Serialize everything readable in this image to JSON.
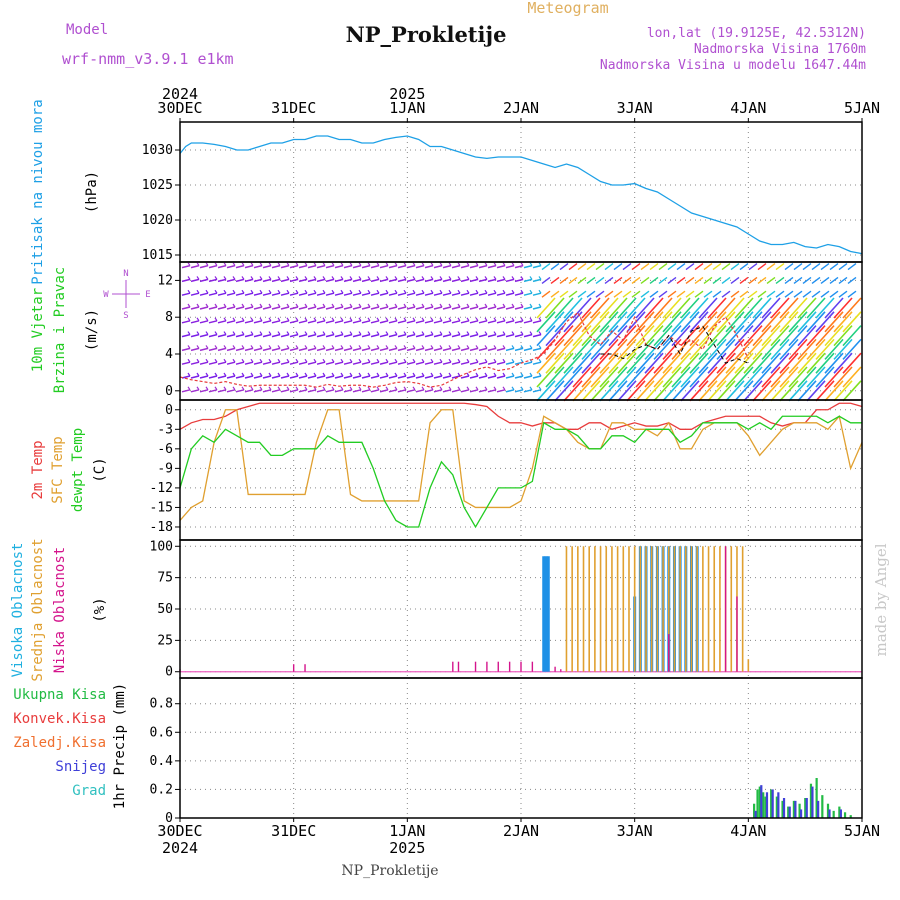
{
  "header": {
    "model_label": "Model",
    "model_name": "wrf-nmm_v3.9.1 e1km",
    "title": "NP_Prokletije",
    "subtitle": "Meteogram",
    "lonlat": "lon,lat (19.9125E, 42.5312N)",
    "elevation": "Nadmorska Visina 1760m",
    "model_elevation": "Nadmorska Visina u modelu 1647.44m",
    "watermark": "made by Angel",
    "footer_station": "NP_Prokletije"
  },
  "time_axis": {
    "labels": [
      "30DEC",
      "31DEC",
      "1JAN",
      "2JAN",
      "3JAN",
      "4JAN",
      "5JAN"
    ],
    "year_labels": [
      {
        "at": 0,
        "text": "2024"
      },
      {
        "at": 2,
        "text": "2025"
      }
    ]
  },
  "colors": {
    "pressure": "#1ea0e6",
    "temp2m": "#e83c3c",
    "sfc_temp": "#e0a030",
    "dewpoint": "#22cc22",
    "cloud_high": "#1e90e6",
    "cloud_mid": "#e0a030",
    "cloud_low": "#d4148c",
    "precip_total": "#22bb44",
    "precip_conv": "#e83c3c",
    "precip_frz": "#f07030",
    "precip_snow": "#4040d8",
    "precip_hail": "#30c0c0",
    "label_purple": "#b050d0",
    "grid": "#888888"
  },
  "chart_data": [
    {
      "type": "line",
      "panel": "pressure",
      "ylabel_name": "Pritisak na nivou mora",
      "ylabel_unit": "(hPa)",
      "yticks": [
        "1015",
        "1020",
        "1025",
        "1030"
      ],
      "ylim": [
        1014,
        1034
      ],
      "x_days": [
        0,
        0.05,
        0.1,
        0.2,
        0.3,
        0.4,
        0.5,
        0.6,
        0.7,
        0.8,
        0.9,
        1.0,
        1.1,
        1.2,
        1.3,
        1.4,
        1.5,
        1.6,
        1.7,
        1.8,
        1.9,
        2.0,
        2.1,
        2.2,
        2.3,
        2.4,
        2.5,
        2.6,
        2.7,
        2.8,
        2.9,
        3.0,
        3.1,
        3.2,
        3.3,
        3.4,
        3.5,
        3.6,
        3.7,
        3.8,
        3.9,
        4.0,
        4.1,
        4.2,
        4.3,
        4.4,
        4.5,
        4.6,
        4.7,
        4.8,
        4.9,
        5.0,
        5.1,
        5.2,
        5.3,
        5.4,
        5.5,
        5.6,
        5.7,
        5.8,
        5.9,
        6.0
      ],
      "series": [
        {
          "name": "SLP",
          "values": [
            1029.5,
            1030.5,
            1031.0,
            1031.0,
            1030.8,
            1030.5,
            1030.0,
            1030.0,
            1030.5,
            1031.0,
            1031.0,
            1031.5,
            1031.5,
            1032.0,
            1032.0,
            1031.5,
            1031.5,
            1031.0,
            1031.0,
            1031.5,
            1031.8,
            1032.0,
            1031.5,
            1030.5,
            1030.5,
            1030.0,
            1029.5,
            1029.0,
            1028.8,
            1029.0,
            1029.0,
            1029.0,
            1028.5,
            1028.0,
            1027.5,
            1028.0,
            1027.5,
            1026.5,
            1025.5,
            1025.0,
            1025.0,
            1025.2,
            1024.5,
            1024.0,
            1023.0,
            1022.0,
            1021.0,
            1020.5,
            1020.0,
            1019.5,
            1019.0,
            1018.0,
            1017.0,
            1016.5,
            1016.5,
            1016.8,
            1016.2,
            1016.0,
            1016.5,
            1016.2,
            1015.5,
            1015.2
          ]
        }
      ]
    },
    {
      "type": "line",
      "panel": "wind",
      "ylabel_name": "10m Vjetar",
      "ylabel_name2": "Brzina i Pravac",
      "ylabel_unit": "(m/s)",
      "compass": {
        "n": "N",
        "e": "E",
        "w": "W",
        "s": "S"
      },
      "yticks": [
        "0",
        "4",
        "8",
        "12"
      ],
      "ylim": [
        -1,
        14
      ],
      "x_days": [
        0,
        0.1,
        0.2,
        0.3,
        0.4,
        0.5,
        0.6,
        0.7,
        0.8,
        0.9,
        1.0,
        1.1,
        1.2,
        1.3,
        1.4,
        1.5,
        1.6,
        1.7,
        1.8,
        1.9,
        2.0,
        2.1,
        2.2,
        2.3,
        2.4,
        2.5,
        2.6,
        2.7,
        2.8,
        2.9,
        3.0,
        3.1,
        3.2,
        3.3,
        3.4,
        3.5,
        3.6,
        3.7,
        3.8,
        3.9,
        4.0,
        4.1,
        4.2,
        4.3,
        4.4,
        4.5,
        4.6,
        4.7,
        4.8,
        4.9,
        5.0
      ],
      "series": [
        {
          "name": "speed",
          "values": [
            1.5,
            1.2,
            1.0,
            0.8,
            1.0,
            0.7,
            0.5,
            0.6,
            0.6,
            0.6,
            0.6,
            0.6,
            0.4,
            0.7,
            0.5,
            0.6,
            0.6,
            0.4,
            0.6,
            0.9,
            1.0,
            0.8,
            0.4,
            0.6,
            1.2,
            1.8,
            2.3,
            2.6,
            2.2,
            2.4,
            3.0,
            3.4,
            4.0,
            5.5,
            7.5,
            8.5,
            6.0,
            5.0,
            6.5,
            5.5,
            8.0,
            5.0,
            4.5,
            6.0,
            5.0,
            5.5,
            4.5,
            7.0,
            8.0,
            6.0,
            3.5
          ]
        },
        {
          "name": "gust",
          "values": [
            null,
            null,
            null,
            null,
            null,
            null,
            null,
            null,
            null,
            null,
            null,
            null,
            null,
            null,
            null,
            null,
            null,
            null,
            null,
            null,
            null,
            null,
            null,
            null,
            null,
            null,
            null,
            null,
            null,
            null,
            null,
            null,
            null,
            null,
            null,
            null,
            null,
            4.0,
            4.0,
            3.5,
            4.5,
            5.0,
            4.5,
            6.0,
            4.0,
            6.5,
            7.0,
            5.0,
            3.0,
            3.5,
            3.0
          ]
        }
      ]
    },
    {
      "type": "line",
      "panel": "temperature",
      "ylabel_name": "2m Temp",
      "ylabel_name2": "SFC Temp",
      "ylabel_name3": "dewpt Temp",
      "ylabel_unit": "(C)",
      "yticks": [
        "0",
        "-3",
        "-6",
        "-9",
        "-12",
        "-15",
        "-18"
      ],
      "ylim": [
        -20,
        1.5
      ],
      "x_days": [
        0,
        0.1,
        0.2,
        0.3,
        0.4,
        0.5,
        0.6,
        0.7,
        0.8,
        0.9,
        1.0,
        1.1,
        1.2,
        1.3,
        1.4,
        1.5,
        1.6,
        1.7,
        1.8,
        1.9,
        2.0,
        2.1,
        2.2,
        2.3,
        2.4,
        2.5,
        2.6,
        2.7,
        2.8,
        2.9,
        3.0,
        3.1,
        3.2,
        3.3,
        3.4,
        3.5,
        3.6,
        3.7,
        3.8,
        3.9,
        4.0,
        4.1,
        4.2,
        4.3,
        4.4,
        4.5,
        4.6,
        4.7,
        4.8,
        4.9,
        5.0,
        5.1,
        5.2,
        5.3,
        5.4,
        5.5,
        5.6,
        5.7,
        5.8,
        5.9,
        6.0
      ],
      "series": [
        {
          "name": "2m",
          "values": [
            -3,
            -2,
            -1.5,
            -1.5,
            -1,
            0,
            0.5,
            1,
            1,
            1,
            1,
            1,
            1,
            1,
            1,
            1,
            1,
            1,
            1,
            1,
            1,
            1,
            1,
            1,
            1,
            1,
            0.8,
            0.5,
            -1,
            -2,
            -2,
            -2.5,
            -2,
            -2,
            -3,
            -3,
            -2,
            -2,
            -3,
            -2.5,
            -2,
            -2.5,
            -2.5,
            -2,
            -3,
            -3,
            -2,
            -1.5,
            -1,
            -1,
            -1,
            -1,
            -2,
            -2.5,
            -2,
            -2,
            0,
            0,
            1,
            1,
            0.5
          ]
        },
        {
          "name": "sfc",
          "values": [
            -17,
            -15,
            -14,
            -5,
            0,
            0,
            -13,
            -13,
            -13,
            -13,
            -13,
            -13,
            -5,
            0,
            0,
            -13,
            -14,
            -14,
            -14,
            -14,
            -14,
            -14,
            -2,
            0,
            0,
            -14,
            -15,
            -15,
            -15,
            -15,
            -14,
            -9,
            -1,
            -2,
            -3,
            -5,
            -6,
            -6,
            -2,
            -2,
            -3,
            -3,
            -4,
            -2,
            -6,
            -6,
            -3,
            -2,
            -2,
            -2,
            -4,
            -7,
            -5,
            -3,
            -2,
            -2,
            -2,
            -3,
            -1,
            -9,
            -5
          ]
        },
        {
          "name": "dewpt",
          "values": [
            -12,
            -6,
            -4,
            -5,
            -3,
            -4,
            -5,
            -5,
            -7,
            -7,
            -6,
            -6,
            -6,
            -4,
            -5,
            -5,
            -5,
            -9,
            -14,
            -17,
            -18,
            -18,
            -12,
            -8,
            -10,
            -15,
            -18,
            -15,
            -12,
            -12,
            -12,
            -11,
            -2,
            -3,
            -3,
            -4,
            -6,
            -6,
            -4,
            -4,
            -5,
            -3,
            -3,
            -3,
            -5,
            -4,
            -2,
            -2,
            -2,
            -2,
            -3,
            -2,
            -3,
            -1,
            -1,
            -1,
            -1,
            -2,
            -1,
            -2,
            -2
          ]
        }
      ]
    },
    {
      "type": "bar",
      "panel": "clouds",
      "ylabel_name": "Visoka Oblacnost",
      "ylabel_name2": "Srednja Oblacnost",
      "ylabel_name3": "Niska Oblacnost",
      "ylabel_unit": "(%)",
      "yticks": [
        "0",
        "25",
        "50",
        "75",
        "100"
      ],
      "ylim": [
        -5,
        105
      ],
      "series": [
        {
          "name": "high",
          "x_days": [
            3.2,
            3.22,
            3.24,
            4.0,
            4.05,
            4.1,
            4.15,
            4.2,
            4.25,
            4.3,
            4.35,
            4.4,
            4.45,
            4.5,
            4.55
          ],
          "values": [
            92,
            92,
            92,
            60,
            100,
            100,
            100,
            100,
            100,
            100,
            100,
            100,
            100,
            100,
            100
          ]
        },
        {
          "name": "mid",
          "x_days": [
            3.4,
            3.45,
            3.5,
            3.55,
            3.6,
            3.65,
            3.7,
            3.75,
            3.8,
            3.85,
            3.9,
            3.95,
            4.0,
            4.05,
            4.1,
            4.15,
            4.2,
            4.25,
            4.3,
            4.35,
            4.4,
            4.45,
            4.5,
            4.55,
            4.6,
            4.65,
            4.7,
            4.75,
            4.8,
            4.85,
            4.9,
            4.95,
            5.0
          ],
          "values": [
            100,
            100,
            100,
            100,
            100,
            100,
            100,
            100,
            100,
            100,
            100,
            100,
            100,
            100,
            100,
            100,
            100,
            100,
            100,
            100,
            100,
            100,
            100,
            100,
            100,
            100,
            100,
            100,
            100,
            100,
            100,
            100,
            10
          ]
        },
        {
          "name": "low",
          "x_days": [
            0.0,
            1.0,
            1.1,
            3.3,
            3.35,
            4.3,
            4.8,
            4.9,
            4.95,
            3.1,
            2.4,
            2.45,
            2.6,
            2.7,
            2.8,
            2.9,
            3.0
          ],
          "values": [
            2,
            6,
            6,
            4,
            2,
            30,
            100,
            60,
            0,
            8,
            8,
            8,
            8,
            8,
            8,
            8,
            8
          ]
        }
      ]
    },
    {
      "type": "bar",
      "panel": "precip",
      "legend": [
        "Ukupna Kisa",
        "Konvek.Kisa",
        "Zaledj.Kisa",
        "Snijeg",
        "Grad"
      ],
      "ylabel_name": "1hr Precip (mm)",
      "yticks": [
        "0",
        "0.2",
        "0.4",
        "0.6",
        "0.8"
      ],
      "ylim": [
        0,
        0.98
      ],
      "series": [
        {
          "name": "Ukupna Kisa",
          "x_days": [
            5.05,
            5.08,
            5.1,
            5.13,
            5.15,
            5.2,
            5.25,
            5.3,
            5.35,
            5.4,
            5.45,
            5.5,
            5.55,
            5.6,
            5.65,
            5.7,
            5.75,
            5.8,
            5.85,
            5.9
          ],
          "values": [
            0.1,
            0.2,
            0.22,
            0.18,
            0.15,
            0.2,
            0.15,
            0.12,
            0.08,
            0.12,
            0.1,
            0.14,
            0.24,
            0.28,
            0.16,
            0.1,
            0.05,
            0.08,
            0.04,
            0.02
          ]
        },
        {
          "name": "Snijeg",
          "x_days": [
            5.05,
            5.1,
            5.15,
            5.2,
            5.25,
            5.3,
            5.35,
            5.4,
            5.45,
            5.5,
            5.55,
            5.6,
            5.7,
            5.8
          ],
          "values": [
            0.05,
            0.23,
            0.18,
            0.2,
            0.18,
            0.14,
            0.08,
            0.12,
            0.06,
            0.14,
            0.22,
            0.12,
            0.06,
            0.06
          ]
        }
      ]
    }
  ]
}
